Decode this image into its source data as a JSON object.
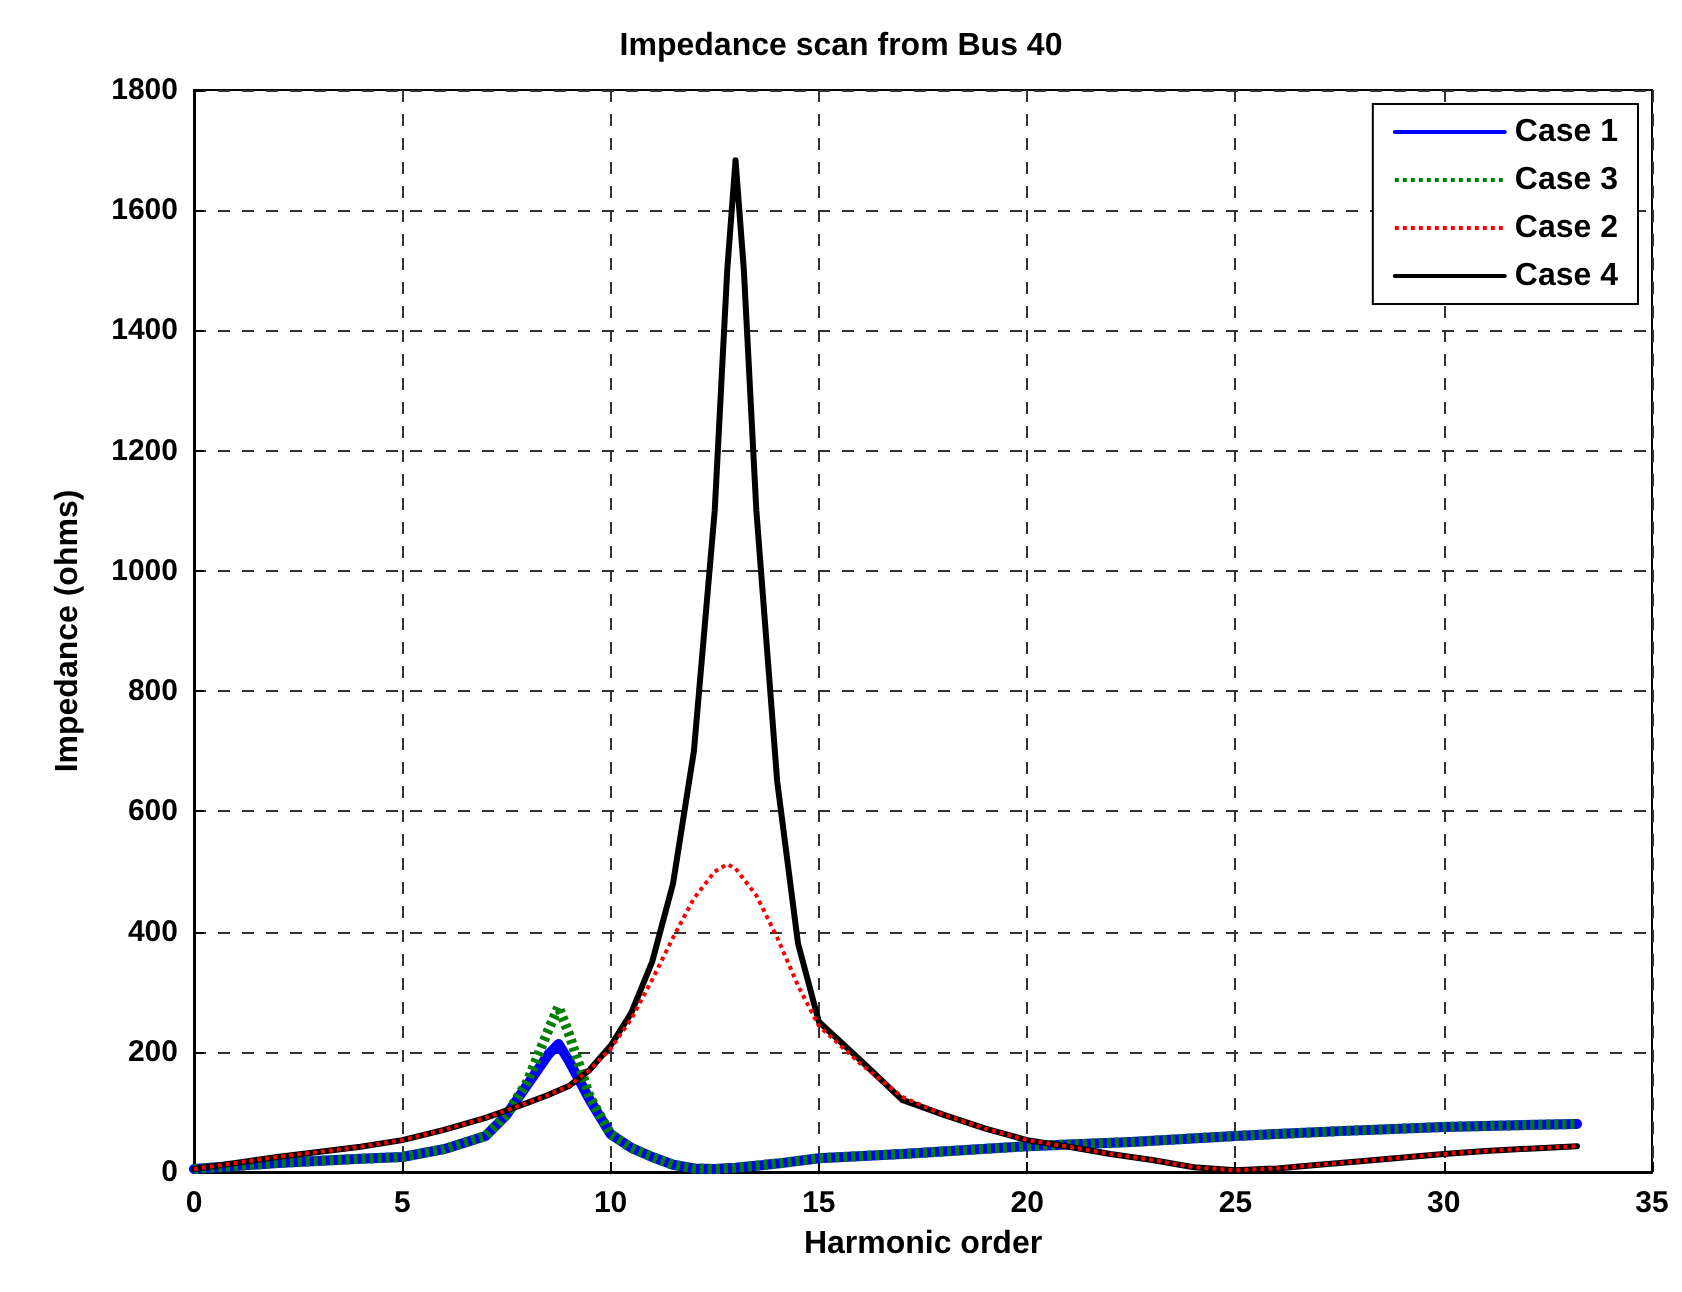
{
  "chart_data": {
    "type": "line",
    "title": "Impedance scan from Bus 40",
    "xlabel": "Harmonic order",
    "ylabel": "Impedance (ohms)",
    "xlim": [
      0,
      35
    ],
    "xticks": [
      0,
      5,
      10,
      15,
      20,
      25,
      30,
      35
    ],
    "ylim": [
      0,
      1800
    ],
    "yticks": [
      0,
      200,
      400,
      600,
      800,
      1000,
      1200,
      1400,
      1600,
      1800
    ],
    "grid": true,
    "legend": "top right",
    "series": [
      {
        "name": "Case 1",
        "color": "#0000ff",
        "line_style": "solid",
        "x": [
          0,
          2,
          4,
          5,
          6,
          7,
          7.5,
          8,
          8.5,
          8.75,
          9,
          9.5,
          10,
          10.5,
          11,
          11.5,
          12,
          12.5,
          13,
          14,
          15,
          17,
          20,
          22.5,
          25,
          27.5,
          30,
          33.2
        ],
        "values": [
          5,
          15,
          22,
          25,
          38,
          60,
          95,
          145,
          195,
          213,
          185,
          120,
          63,
          40,
          25,
          12,
          6,
          5,
          7,
          14,
          23,
          30,
          43,
          50,
          60,
          68,
          75,
          80
        ]
      },
      {
        "name": "Case 3",
        "color": "#008000",
        "line_style": "dotted",
        "x": [
          0,
          2,
          4,
          5,
          6,
          7,
          7.5,
          8,
          8.5,
          8.75,
          9,
          9.5,
          10,
          10.5,
          11,
          11.5,
          12,
          12.5,
          13,
          14,
          15,
          17,
          20,
          22.5,
          25,
          27.5,
          30,
          33.2
        ],
        "values": [
          5,
          15,
          22,
          25,
          38,
          60,
          95,
          150,
          235,
          275,
          230,
          125,
          63,
          40,
          25,
          12,
          6,
          5,
          7,
          14,
          23,
          30,
          43,
          50,
          60,
          68,
          75,
          80
        ]
      },
      {
        "name": "Case 2",
        "color": "#ff0000",
        "line_style": "dotted",
        "x": [
          0,
          2,
          4,
          5,
          6,
          7,
          8,
          8.5,
          9,
          9.5,
          10,
          10.5,
          11,
          11.5,
          12,
          12.5,
          12.8,
          13,
          13.5,
          14,
          14.5,
          15,
          16,
          17,
          18,
          19,
          20,
          21,
          22,
          23,
          24,
          25,
          26,
          27,
          28,
          30,
          31,
          33.2
        ],
        "values": [
          5,
          25,
          42,
          53,
          70,
          90,
          115,
          128,
          143,
          170,
          205,
          255,
          320,
          390,
          455,
          500,
          512,
          505,
          460,
          390,
          310,
          243,
          180,
          125,
          95,
          72,
          53,
          42,
          30,
          20,
          8,
          3,
          6,
          12,
          18,
          30,
          35,
          43
        ]
      },
      {
        "name": "Case 4",
        "color": "#000000",
        "line_style": "solid",
        "x": [
          0,
          2,
          4,
          5,
          6,
          7,
          8,
          8.5,
          9,
          9.5,
          10,
          10.5,
          11,
          11.5,
          12,
          12.5,
          12.8,
          13,
          13.2,
          13.5,
          14,
          14.5,
          15,
          16,
          17,
          18,
          19,
          20,
          21,
          22,
          23,
          24,
          25,
          26,
          27,
          28,
          30,
          31,
          33.2
        ],
        "values": [
          5,
          25,
          42,
          53,
          70,
          90,
          115,
          128,
          143,
          170,
          210,
          265,
          350,
          480,
          700,
          1100,
          1500,
          1683,
          1500,
          1100,
          650,
          380,
          250,
          186,
          120,
          95,
          72,
          53,
          42,
          30,
          20,
          8,
          3,
          6,
          12,
          18,
          30,
          35,
          43
        ]
      }
    ]
  }
}
